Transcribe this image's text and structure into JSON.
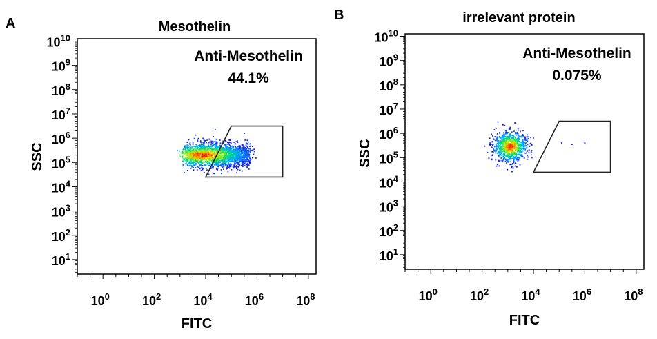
{
  "chart_data": [
    {
      "type": "scatter",
      "panel_label": "A",
      "title": "Mesothelin",
      "xlabel": "FITC",
      "ylabel": "SSC",
      "x_scale": "log",
      "y_scale": "log",
      "xlim_exp": [
        -1,
        8.3
      ],
      "ylim_exp": [
        0.4,
        10.1
      ],
      "x_ticks": [
        {
          "mantissa": "10",
          "exp": "0"
        },
        {
          "mantissa": "10",
          "exp": "2"
        },
        {
          "mantissa": "10",
          "exp": "4"
        },
        {
          "mantissa": "10",
          "exp": "6"
        },
        {
          "mantissa": "10",
          "exp": "8"
        }
      ],
      "x_tick_exps": [
        0,
        2,
        4,
        6,
        8
      ],
      "y_ticks": [
        {
          "mantissa": "10",
          "exp": "1"
        },
        {
          "mantissa": "10",
          "exp": "2"
        },
        {
          "mantissa": "10",
          "exp": "3"
        },
        {
          "mantissa": "10",
          "exp": "4"
        },
        {
          "mantissa": "10",
          "exp": "5"
        },
        {
          "mantissa": "10",
          "exp": "6"
        },
        {
          "mantissa": "10",
          "exp": "7"
        },
        {
          "mantissa": "10",
          "exp": "8"
        },
        {
          "mantissa": "10",
          "exp": "9"
        },
        {
          "mantissa": "10",
          "exp": "10"
        }
      ],
      "y_tick_exps": [
        1,
        2,
        3,
        4,
        5,
        6,
        7,
        8,
        9,
        10
      ],
      "gate_label": "Anti-Mesothelin",
      "gate_value": "44.1%",
      "gate_polygon_exp": [
        [
          4.0,
          4.4
        ],
        [
          5.0,
          6.5
        ],
        [
          7.0,
          6.5
        ],
        [
          7.0,
          4.4
        ]
      ],
      "populations": [
        {
          "cx_exp": 4.3,
          "cy_exp": 5.3,
          "sx": 1.25,
          "sy": 0.3,
          "n": 2000,
          "spread": "wide"
        }
      ],
      "grid": false,
      "legend": "none"
    },
    {
      "type": "scatter",
      "panel_label": "B",
      "title": "irrelevant protein",
      "xlabel": "FITC",
      "ylabel": "SSC",
      "x_scale": "log",
      "y_scale": "log",
      "xlim_exp": [
        -1,
        8.3
      ],
      "ylim_exp": [
        0.4,
        10.1
      ],
      "x_ticks": [
        {
          "mantissa": "10",
          "exp": "0"
        },
        {
          "mantissa": "10",
          "exp": "2"
        },
        {
          "mantissa": "10",
          "exp": "4"
        },
        {
          "mantissa": "10",
          "exp": "6"
        },
        {
          "mantissa": "10",
          "exp": "8"
        }
      ],
      "x_tick_exps": [
        0,
        2,
        4,
        6,
        8
      ],
      "y_ticks": [
        {
          "mantissa": "10",
          "exp": "1"
        },
        {
          "mantissa": "10",
          "exp": "2"
        },
        {
          "mantissa": "10",
          "exp": "3"
        },
        {
          "mantissa": "10",
          "exp": "4"
        },
        {
          "mantissa": "10",
          "exp": "5"
        },
        {
          "mantissa": "10",
          "exp": "6"
        },
        {
          "mantissa": "10",
          "exp": "7"
        },
        {
          "mantissa": "10",
          "exp": "8"
        },
        {
          "mantissa": "10",
          "exp": "9"
        },
        {
          "mantissa": "10",
          "exp": "10"
        }
      ],
      "y_tick_exps": [
        1,
        2,
        3,
        4,
        5,
        6,
        7,
        8,
        9,
        10
      ],
      "gate_label": "Anti-Mesothelin",
      "gate_value": "0.075%",
      "gate_polygon_exp": [
        [
          4.0,
          4.4
        ],
        [
          5.0,
          6.5
        ],
        [
          7.0,
          6.5
        ],
        [
          7.0,
          4.4
        ]
      ],
      "populations": [
        {
          "cx_exp": 3.1,
          "cy_exp": 5.45,
          "sx": 0.32,
          "sy": 0.3,
          "n": 900,
          "spread": "compact"
        }
      ],
      "outliers_exp": [
        [
          5.1,
          5.6
        ],
        [
          5.5,
          5.55
        ],
        [
          6.0,
          5.6
        ]
      ],
      "grid": false,
      "legend": "none"
    }
  ]
}
